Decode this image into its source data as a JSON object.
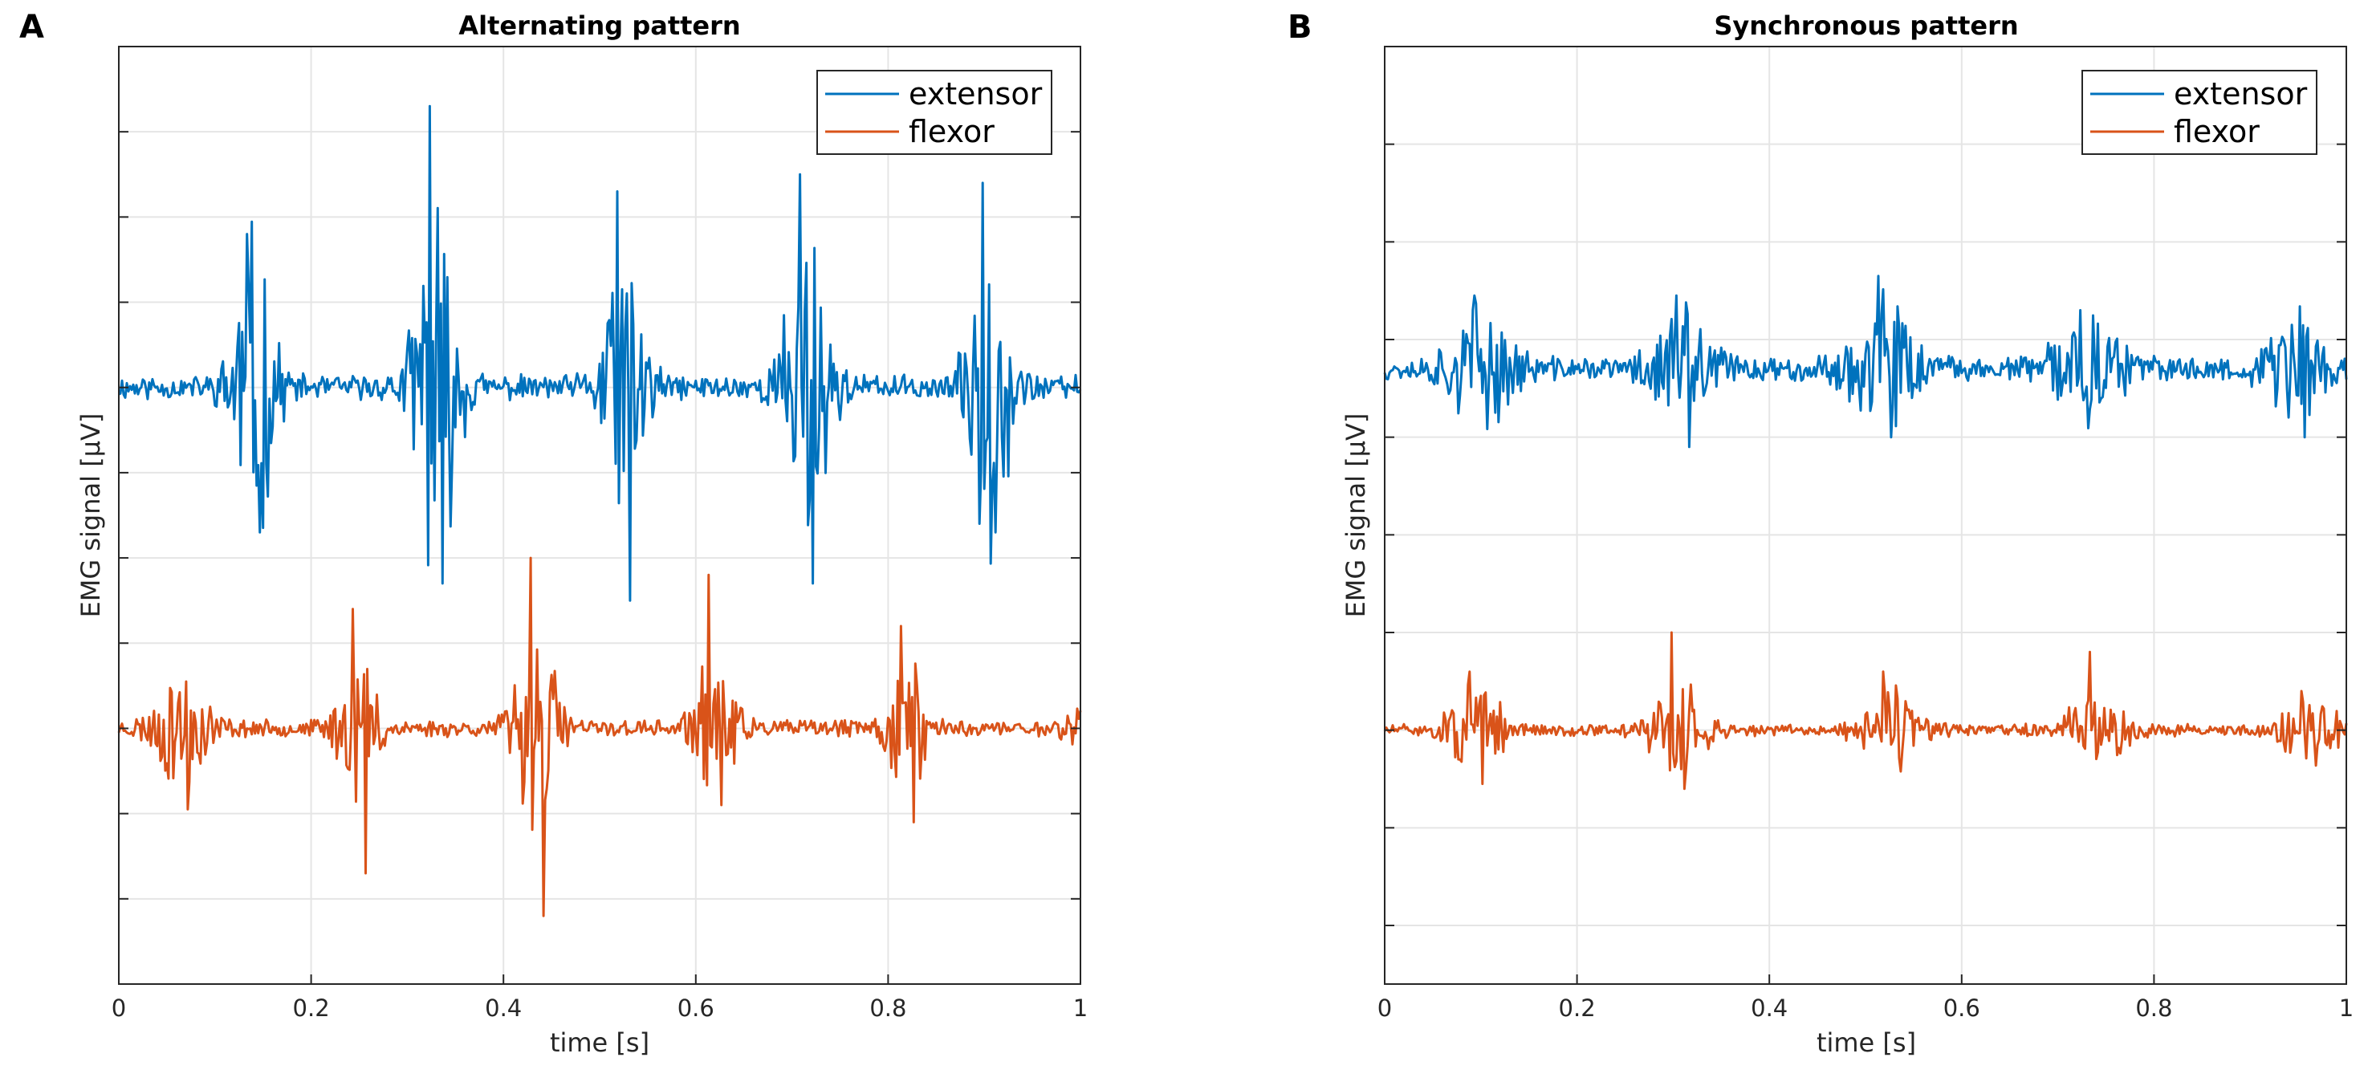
{
  "colors": {
    "extensor": "#0072BD",
    "flexor": "#D95319",
    "grid": "#E5E5E5",
    "axis": "#262626"
  },
  "chart_data": [
    {
      "type": "line",
      "panel_letter": "A",
      "title": "Alternating pattern",
      "xlabel": "time [s]",
      "ylabel": "EMG signal [μV]",
      "xlim": [
        0,
        1
      ],
      "ylim": [
        0,
        11
      ],
      "x_ticks": [
        0,
        0.2,
        0.4,
        0.6,
        0.8,
        1
      ],
      "x_tick_labels": [
        "0",
        "0.2",
        "0.4",
        "0.6",
        "0.8",
        "1"
      ],
      "y_ticks": [
        1,
        2,
        3,
        4,
        5,
        6,
        7,
        8,
        9,
        10
      ],
      "grid": true,
      "legend": {
        "position": "top-right",
        "entries": [
          "extensor",
          "flexor"
        ]
      },
      "series": [
        {
          "name": "extensor",
          "color_key": "extensor",
          "baseline": 7.0,
          "noise": 0.12,
          "bursts": [
            {
              "t": 0.14,
              "amp": 1.5,
              "w": 0.022,
              "peak": 1.8,
              "trough": -1.7
            },
            {
              "t": 0.33,
              "amp": 1.8,
              "w": 0.024,
              "peak": 3.3,
              "trough": -2.3
            },
            {
              "t": 0.525,
              "amp": 1.6,
              "w": 0.022,
              "peak": 2.3,
              "trough": -2.5
            },
            {
              "t": 0.715,
              "amp": 1.6,
              "w": 0.024,
              "peak": 2.5,
              "trough": -2.3
            },
            {
              "t": 0.905,
              "amp": 1.6,
              "w": 0.022,
              "peak": 2.4,
              "trough": -1.7
            }
          ],
          "seed": 11
        },
        {
          "name": "flexor",
          "color_key": "flexor",
          "baseline": 3.0,
          "noise": 0.08,
          "bursts": [
            {
              "t": 0.065,
              "amp": 0.6,
              "w": 0.028,
              "trough": -0.95
            },
            {
              "t": 0.25,
              "amp": 0.7,
              "w": 0.022,
              "peak": 1.4,
              "trough": -1.7
            },
            {
              "t": 0.435,
              "amp": 1.0,
              "w": 0.024,
              "peak": 2.0,
              "trough": -2.2
            },
            {
              "t": 0.62,
              "amp": 0.7,
              "w": 0.022,
              "peak": 1.8,
              "trough": -0.9
            },
            {
              "t": 0.82,
              "amp": 0.7,
              "w": 0.022,
              "peak": 1.2,
              "trough": -1.1
            },
            {
              "t": 1.0,
              "amp": 0.25,
              "w": 0.015
            }
          ],
          "seed": 23
        }
      ]
    },
    {
      "type": "line",
      "panel_letter": "B",
      "title": "Synchronous pattern",
      "xlabel": "time [s]",
      "ylabel": "EMG signal [μV]",
      "xlim": [
        0,
        1
      ],
      "ylim": [
        0,
        9.6
      ],
      "x_ticks": [
        0,
        0.2,
        0.4,
        0.6,
        0.8,
        1
      ],
      "x_tick_labels": [
        "0",
        "0.2",
        "0.4",
        "0.6",
        "0.8",
        "1"
      ],
      "y_ticks": [
        0.6,
        1.6,
        2.6,
        3.6,
        4.6,
        5.6,
        6.6,
        7.6,
        8.6
      ],
      "grid": true,
      "legend": {
        "position": "top-right",
        "entries": [
          "extensor",
          "flexor"
        ]
      },
      "series": [
        {
          "name": "extensor",
          "color_key": "extensor",
          "baseline": 6.3,
          "noise": 0.1,
          "bursts": [
            {
              "t": 0.1,
              "amp": 0.45,
              "w": 0.035,
              "peak": 0.75
            },
            {
              "t": 0.31,
              "amp": 0.5,
              "w": 0.035,
              "peak": 0.75,
              "trough": -0.8
            },
            {
              "t": 0.52,
              "amp": 0.55,
              "w": 0.035,
              "peak": 0.95,
              "trough": -0.7
            },
            {
              "t": 0.73,
              "amp": 0.45,
              "w": 0.035,
              "peak": 0.6
            },
            {
              "t": 0.95,
              "amp": 0.45,
              "w": 0.035,
              "peak": 0.45,
              "trough": -0.7
            }
          ],
          "seed": 37
        },
        {
          "name": "flexor",
          "color_key": "flexor",
          "baseline": 2.6,
          "noise": 0.05,
          "bursts": [
            {
              "t": 0.095,
              "amp": 0.35,
              "w": 0.03,
              "peak": 0.6,
              "trough": -0.55
            },
            {
              "t": 0.305,
              "amp": 0.4,
              "w": 0.03,
              "peak": 1.0,
              "trough": -0.6
            },
            {
              "t": 0.525,
              "amp": 0.35,
              "w": 0.03,
              "peak": 0.6
            },
            {
              "t": 0.74,
              "amp": 0.35,
              "w": 0.03,
              "peak": 0.8
            },
            {
              "t": 0.96,
              "amp": 0.3,
              "w": 0.03,
              "peak": 0.4
            }
          ],
          "seed": 51
        }
      ]
    }
  ]
}
